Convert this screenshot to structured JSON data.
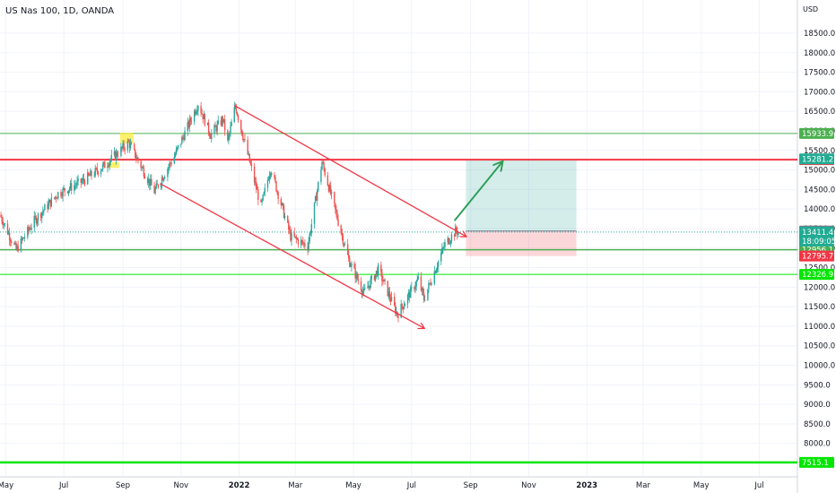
{
  "header": {
    "symbol_title": "US Nas 100, 1D, OANDA",
    "currency": "USD"
  },
  "chart_data": {
    "type": "candlestick",
    "title": "US Nas 100, 1D, OANDA",
    "ylabel": "USD",
    "ylim": [
      7300,
      19400
    ],
    "y_ticks": [
      7500,
      8000,
      8500,
      9000,
      9500,
      10000,
      10500,
      11000,
      11500,
      12000,
      12500,
      13000,
      13500,
      14000,
      14500,
      15000,
      15500,
      16000,
      16500,
      17000,
      17500,
      18000,
      18500
    ],
    "x_ticks": [
      "May",
      "Jul",
      "Sep",
      "Nov",
      "2022",
      "Mar",
      "May",
      "Jul",
      "Sep",
      "Nov",
      "2023",
      "Mar",
      "May",
      "Jul"
    ],
    "x_range": [
      "2021-04-25",
      "2023-08-10"
    ],
    "series": [
      {
        "style": "candles",
        "up_color": "#26a69a",
        "down_color": "#ef5350",
        "path": [
          [
            "2021-04-25",
            13850
          ],
          [
            "2021-05-12",
            12950
          ],
          [
            "2021-05-31",
            13700
          ],
          [
            "2021-06-25",
            14400
          ],
          [
            "2021-07-20",
            14700
          ],
          [
            "2021-08-12",
            15100
          ],
          [
            "2021-09-07",
            15700
          ],
          [
            "2021-09-20",
            15100
          ],
          [
            "2021-10-04",
            14450
          ],
          [
            "2021-10-25",
            15350
          ],
          [
            "2021-11-19",
            16700
          ],
          [
            "2021-12-02",
            15900
          ],
          [
            "2021-12-15",
            16300
          ],
          [
            "2021-12-20",
            15700
          ],
          [
            "2021-12-28",
            16650
          ],
          [
            "2022-01-24",
            14050
          ],
          [
            "2022-02-03",
            15050
          ],
          [
            "2022-02-24",
            13300
          ],
          [
            "2022-03-14",
            13050
          ],
          [
            "2022-03-29",
            15200
          ],
          [
            "2022-04-26",
            12700
          ],
          [
            "2022-05-12",
            11850
          ],
          [
            "2022-05-27",
            12450
          ],
          [
            "2022-06-16",
            11300
          ],
          [
            "2022-07-08",
            12200
          ],
          [
            "2022-07-14",
            11700
          ],
          [
            "2022-08-05",
            13100
          ],
          [
            "2022-08-17",
            13450
          ],
          [
            "2022-08-19",
            13400
          ]
        ]
      }
    ],
    "horizontal_levels": [
      {
        "price": 15933.9,
        "label": "15933.9",
        "color": "#4caf50",
        "width": 1
      },
      {
        "price": 15261.9,
        "label": "15261.9",
        "color": "#f23645",
        "width": 2
      },
      {
        "price": 12956.1,
        "label": "12956.1",
        "color": "#4caf50",
        "width": 1.5
      },
      {
        "price": 12326.9,
        "label": "12326.9",
        "color": "#00e600",
        "width": 1
      },
      {
        "price": 7515.1,
        "label": "7515.1",
        "color": "#00e600",
        "width": 2.5
      }
    ],
    "price_labels": [
      {
        "price": 15281.2,
        "label": "15281.2",
        "color": "#22ab94"
      },
      {
        "price": 13437.1,
        "label": "13437.1",
        "color": "#787b86"
      },
      {
        "price": 13411.4,
        "label": "13411.4",
        "sub": "18:09:05",
        "color": "#22ab94"
      },
      {
        "price": 12795.7,
        "label": "12795.7",
        "color": "#f23645"
      }
    ],
    "position_tool": {
      "start": "2022-08-27",
      "end": "2022-12-21",
      "target": 15281.2,
      "entry": 13437.1,
      "stop": 12795.7,
      "profit_color": "rgba(38,166,154,0.2)",
      "loss_color": "rgba(242,54,69,0.2)"
    },
    "trend_lines": [
      {
        "from": [
          "2021-12-27",
          16650
        ],
        "to": [
          "2022-08-27",
          13300
        ],
        "color": "#f23645",
        "arrow": true
      },
      {
        "from": [
          "2021-10-10",
          14650
        ],
        "to": [
          "2022-07-14",
          10950
        ],
        "color": "#f23645",
        "arrow": true
      },
      {
        "from": [
          "2022-08-15",
          13700
        ],
        "to": [
          "2022-10-04",
          15200
        ],
        "color": "#2e9e57",
        "arrow": true
      }
    ],
    "highlights": [
      {
        "from": [
          "2021-08-15",
          15050
        ],
        "to": [
          "2021-08-28",
          15200
        ],
        "color": "#ffeb3b"
      },
      {
        "from": [
          "2021-08-29",
          15680
        ],
        "to": [
          "2021-09-12",
          15950
        ],
        "color": "#ffeb3b"
      }
    ]
  }
}
